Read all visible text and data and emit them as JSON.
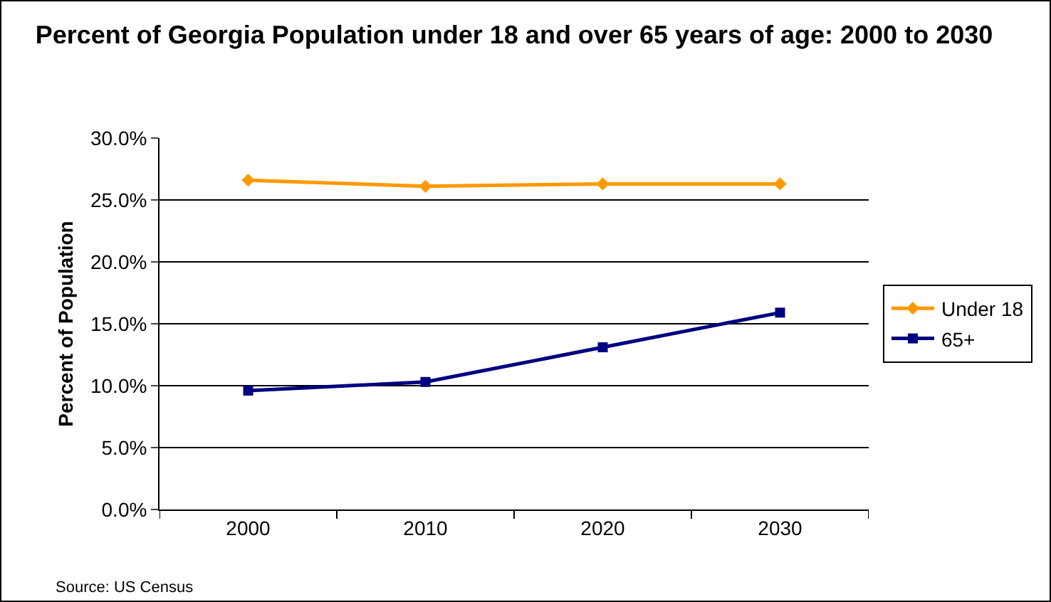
{
  "chart_data": {
    "type": "line",
    "title": "Percent of Georgia Population under 18 and over 65 years of age: 2000 to 2030",
    "ylabel": "Percent of Population",
    "categories": [
      "2000",
      "2010",
      "2020",
      "2030"
    ],
    "series": [
      {
        "name": "Under 18",
        "color": "#ff9900",
        "marker": "diamond",
        "values": [
          26.6,
          26.1,
          26.3,
          26.3
        ]
      },
      {
        "name": "65+",
        "color": "#000080",
        "marker": "square",
        "values": [
          9.6,
          10.3,
          13.1,
          15.9
        ]
      }
    ],
    "ylim": [
      0,
      30
    ],
    "yticks": [
      {
        "value": 0,
        "label": "0.0%"
      },
      {
        "value": 5,
        "label": "5.0%"
      },
      {
        "value": 10,
        "label": "10.0%"
      },
      {
        "value": 15,
        "label": "15.0%"
      },
      {
        "value": 20,
        "label": "20.0%"
      },
      {
        "value": 25,
        "label": "25.0%"
      },
      {
        "value": 30,
        "label": "30.0%"
      }
    ],
    "grid": "y",
    "legend": "right",
    "line_style": "solid",
    "annotations": [
      "Source: US Census"
    ]
  }
}
